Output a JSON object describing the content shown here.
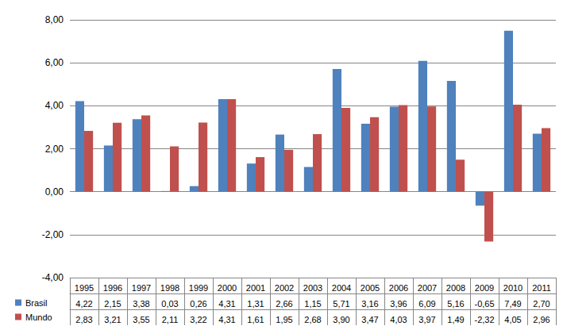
{
  "chart_data": {
    "type": "bar",
    "categories": [
      "1995",
      "1996",
      "1997",
      "1998",
      "1999",
      "2000",
      "2001",
      "2002",
      "2003",
      "2004",
      "2005",
      "2006",
      "2007",
      "2008",
      "2009",
      "2010",
      "2011"
    ],
    "series": [
      {
        "name": "Brasil",
        "color": "#4f81bd",
        "values": [
          4.22,
          2.15,
          3.38,
          0.03,
          0.26,
          4.31,
          1.31,
          2.66,
          1.15,
          5.71,
          3.16,
          3.96,
          6.09,
          5.16,
          -0.65,
          7.49,
          2.7
        ],
        "value_labels": [
          "4,22",
          "2,15",
          "3,38",
          "0,03",
          "0,26",
          "4,31",
          "1,31",
          "2,66",
          "1,15",
          "5,71",
          "3,16",
          "3,96",
          "6,09",
          "5,16",
          "-0,65",
          "7,49",
          "2,70"
        ]
      },
      {
        "name": "Mundo",
        "color": "#c0504d",
        "values": [
          2.83,
          3.21,
          3.55,
          2.11,
          3.22,
          4.31,
          1.61,
          1.95,
          2.68,
          3.9,
          3.47,
          4.03,
          3.97,
          1.49,
          -2.32,
          4.05,
          2.96
        ],
        "value_labels": [
          "2,83",
          "3,21",
          "3,55",
          "2,11",
          "3,22",
          "4,31",
          "1,61",
          "1,95",
          "2,68",
          "3,90",
          "3,47",
          "4,03",
          "3,97",
          "1,49",
          "-2,32",
          "4,05",
          "2,96"
        ]
      }
    ],
    "ylim": [
      -4,
      8
    ],
    "yticks": [
      {
        "value": -4,
        "label": "-4,00"
      },
      {
        "value": -2,
        "label": "-2,00"
      },
      {
        "value": 0,
        "label": "0,00"
      },
      {
        "value": 2,
        "label": "2,00"
      },
      {
        "value": 4,
        "label": "4,00"
      },
      {
        "value": 6,
        "label": "6,00"
      },
      {
        "value": 8,
        "label": "8,00"
      }
    ],
    "grid": true,
    "legend": "left"
  }
}
